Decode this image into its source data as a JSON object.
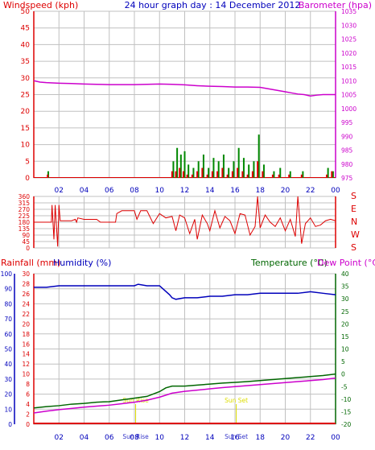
{
  "header": {
    "left": "Windspeed (kph)",
    "center": "24 hour graph day : 14 December 2012",
    "right": "Barometer (hpa)"
  },
  "labels": {
    "rainfall": "Rainfall (mm)",
    "humidity": "Humidity (%)",
    "temperature": "Temperature (°C)",
    "dewpoint": "Dew Point (°C)",
    "sunrise": "Sun Rise",
    "sunset": "Sun Set"
  },
  "colors": {
    "wind": "#dd0000",
    "gust": "#008800",
    "baro": "#cc00cc",
    "dir": "#dd0000",
    "hum": "#0000bb",
    "temp": "#006600",
    "dew": "#cc00cc",
    "rain": "#dd0000",
    "grid": "#c0c0c0",
    "axisRed": "#dd0000",
    "axisMag": "#cc00cc",
    "axisBlue": "#0000bb",
    "axisGreen": "#006600",
    "sun": "#dddd00"
  },
  "chart_data": [
    {
      "type": "line",
      "title": "24 hour graph day : 14 December 2012",
      "x_ticks": [
        "02",
        "04",
        "06",
        "08",
        "10",
        "12",
        "14",
        "16",
        "18",
        "20",
        "22",
        "00"
      ],
      "x_range": [
        0,
        24
      ],
      "left_axis": {
        "label": "Windspeed (kph)",
        "ticks": [
          0,
          5,
          10,
          15,
          20,
          25,
          30,
          35,
          40,
          45,
          50
        ],
        "range": [
          0,
          50
        ]
      },
      "right_axis": {
        "label": "Barometer (hpa)",
        "ticks": [
          975,
          980,
          985,
          990,
          995,
          1000,
          1005,
          1010,
          1015,
          1020,
          1025,
          1030,
          1035
        ],
        "range": [
          975,
          1035
        ]
      },
      "series": [
        {
          "name": "Barometer (hpa)",
          "axis": "right",
          "x": [
            0.0,
            0.5,
            1.0,
            2.0,
            3.0,
            4.0,
            5.0,
            6.0,
            7.0,
            8.0,
            9.0,
            10.0,
            11.0,
            12.0,
            13.0,
            14.0,
            15.0,
            16.0,
            17.0,
            18.0,
            18.5,
            19.0,
            19.5,
            20.0,
            20.5,
            21.0,
            21.5,
            22.0,
            22.5,
            23.0,
            24.0
          ],
          "y": [
            1010.0,
            1009.5,
            1009.3,
            1009.1,
            1009.0,
            1008.8,
            1008.7,
            1008.6,
            1008.6,
            1008.6,
            1008.7,
            1008.8,
            1008.7,
            1008.5,
            1008.2,
            1008.0,
            1007.9,
            1007.7,
            1007.7,
            1007.6,
            1007.2,
            1006.8,
            1006.4,
            1006.0,
            1005.6,
            1005.2,
            1005.0,
            1004.5,
            1004.8,
            1005.0,
            1005.0
          ]
        },
        {
          "name": "Wind speed",
          "axis": "left",
          "kind": "bars",
          "x": [
            1.1,
            11.0,
            11.3,
            11.6,
            11.9,
            12.2,
            12.6,
            13.0,
            13.4,
            13.8,
            14.2,
            14.6,
            15.0,
            15.4,
            15.8,
            16.2,
            16.6,
            17.0,
            17.4,
            17.8,
            18.2,
            19.0,
            19.5,
            20.3,
            21.3,
            23.3,
            23.7
          ],
          "y": [
            1,
            2,
            2,
            3,
            2,
            1,
            1,
            2,
            3,
            1,
            2,
            2,
            3,
            1,
            2,
            3,
            2,
            1,
            2,
            5,
            2,
            1,
            1,
            1,
            1,
            1,
            2
          ]
        },
        {
          "name": "Gust",
          "axis": "left",
          "kind": "bars",
          "x": [
            1.15,
            11.1,
            11.4,
            11.7,
            12.0,
            12.3,
            12.7,
            13.1,
            13.5,
            13.9,
            14.3,
            14.7,
            15.1,
            15.5,
            15.9,
            16.3,
            16.7,
            17.1,
            17.5,
            17.9,
            18.3,
            19.1,
            19.6,
            20.4,
            21.4,
            23.4,
            23.8
          ],
          "y": [
            2,
            5,
            9,
            7,
            8,
            4,
            3,
            5,
            7,
            3,
            6,
            5,
            7,
            3,
            5,
            9,
            6,
            4,
            5,
            13,
            4,
            2,
            3,
            2,
            2,
            3,
            2
          ]
        }
      ]
    },
    {
      "type": "line",
      "title": "",
      "x_range": [
        0,
        24
      ],
      "left_axis": {
        "ticks": [
          0,
          45,
          90,
          135,
          180,
          225,
          270,
          315,
          360
        ],
        "range": [
          0,
          360
        ]
      },
      "right_axis": {
        "ticks": [
          "S",
          "E",
          "N",
          "W",
          "S"
        ]
      },
      "series": [
        {
          "name": "Wind direction",
          "x": [
            0.0,
            1.0,
            1.4,
            1.45,
            1.6,
            1.7,
            1.9,
            2.0,
            2.1,
            2.5,
            3.0,
            3.3,
            3.4,
            3.5,
            4.0,
            5.0,
            5.3,
            6.5,
            6.6,
            7.0,
            8.0,
            8.2,
            8.5,
            9.0,
            9.5,
            10.0,
            10.5,
            11.0,
            11.3,
            11.6,
            12.0,
            12.4,
            12.8,
            13.0,
            13.4,
            13.8,
            14.0,
            14.4,
            14.8,
            15.2,
            15.6,
            16.0,
            16.4,
            16.8,
            17.2,
            17.6,
            17.8,
            18.0,
            18.4,
            18.8,
            19.2,
            19.6,
            20.0,
            20.4,
            20.8,
            21.0,
            21.3,
            21.6,
            22.0,
            22.4,
            22.8,
            23.2,
            23.6,
            24.0
          ],
          "y": [
            180,
            180,
            180,
            300,
            60,
            300,
            10,
            300,
            190,
            190,
            190,
            200,
            180,
            210,
            200,
            200,
            180,
            180,
            240,
            260,
            260,
            200,
            260,
            260,
            170,
            240,
            210,
            220,
            120,
            230,
            210,
            100,
            200,
            60,
            230,
            170,
            120,
            260,
            140,
            220,
            190,
            100,
            240,
            230,
            90,
            150,
            360,
            140,
            230,
            180,
            150,
            210,
            120,
            200,
            80,
            360,
            30,
            170,
            210,
            150,
            160,
            190,
            200,
            190
          ]
        }
      ]
    },
    {
      "type": "line",
      "title": "",
      "x_range": [
        0,
        24
      ],
      "x_ticks": [
        "02",
        "04",
        "06",
        "08",
        "10",
        "12",
        "14",
        "16",
        "18",
        "20",
        "22",
        "00"
      ],
      "axes": {
        "humidity": {
          "label": "Humidity (%)",
          "ticks": [
            0,
            10,
            20,
            30,
            40,
            50,
            60,
            70,
            80,
            90,
            100
          ],
          "range": [
            0,
            100
          ]
        },
        "rainfall": {
          "label": "Rainfall (mm)",
          "ticks": [
            0,
            2,
            4,
            6,
            8,
            10,
            12,
            14,
            16,
            18,
            20,
            22,
            24,
            26,
            28,
            30
          ],
          "range": [
            0,
            30
          ]
        },
        "temperature": {
          "label": "Temperature (°C)",
          "ticks": [
            -20,
            -15,
            -10,
            -5,
            0,
            5,
            10,
            15,
            20,
            25,
            30,
            35,
            40
          ],
          "range": [
            -20,
            40
          ]
        }
      },
      "annotations": [
        {
          "text": "Sun Rise",
          "x": 8.1
        },
        {
          "text": "Sun Set",
          "x": 16.1
        }
      ],
      "series": [
        {
          "name": "Humidity (%)",
          "axis": "humidity",
          "x": [
            0.0,
            1.0,
            2.0,
            3.0,
            4.0,
            5.0,
            6.0,
            7.0,
            8.0,
            8.3,
            9.0,
            10.0,
            10.4,
            10.8,
            11.0,
            11.3,
            12.0,
            13.0,
            14.0,
            15.0,
            16.0,
            17.0,
            18.0,
            19.0,
            20.0,
            21.0,
            22.0,
            23.0,
            24.0
          ],
          "y": [
            91,
            91,
            92,
            92,
            92,
            92,
            92,
            92,
            92,
            93,
            92,
            92,
            89,
            86,
            84,
            83,
            84,
            84,
            85,
            85,
            86,
            86,
            87,
            87,
            87,
            87,
            88,
            87,
            86
          ]
        },
        {
          "name": "Temperature (°C)",
          "axis": "temperature",
          "x": [
            0.0,
            1.0,
            2.0,
            3.0,
            4.0,
            5.0,
            6.0,
            7.0,
            8.0,
            9.0,
            10.0,
            10.5,
            11.0,
            12.0,
            13.0,
            14.0,
            15.0,
            16.0,
            17.0,
            18.0,
            19.0,
            20.0,
            21.0,
            22.0,
            23.0,
            24.0
          ],
          "y": [
            -13.5,
            -13.0,
            -12.6,
            -12.0,
            -11.7,
            -11.2,
            -11.0,
            -10.3,
            -9.6,
            -8.9,
            -7.0,
            -5.5,
            -4.8,
            -4.8,
            -4.4,
            -4.0,
            -3.6,
            -3.3,
            -3.0,
            -2.6,
            -2.2,
            -1.8,
            -1.4,
            -1.0,
            -0.6,
            0.0
          ]
        },
        {
          "name": "Dew Point (°C)",
          "axis": "temperature",
          "x": [
            0.0,
            1.0,
            2.0,
            3.0,
            4.0,
            5.0,
            6.0,
            7.0,
            8.0,
            9.0,
            10.0,
            11.0,
            12.0,
            13.0,
            14.0,
            15.0,
            16.0,
            17.0,
            18.0,
            19.0,
            20.0,
            21.0,
            22.0,
            23.0,
            24.0
          ],
          "y": [
            -15.5,
            -14.8,
            -14.2,
            -13.7,
            -13.2,
            -12.8,
            -12.4,
            -11.8,
            -11.2,
            -10.4,
            -9.2,
            -7.6,
            -6.9,
            -6.4,
            -5.9,
            -5.4,
            -5.0,
            -4.6,
            -4.2,
            -3.8,
            -3.4,
            -3.0,
            -2.6,
            -2.2,
            -1.6
          ]
        },
        {
          "name": "Rainfall (mm)",
          "axis": "rainfall",
          "x": [
            0,
            24
          ],
          "y": [
            0,
            0
          ]
        }
      ]
    }
  ]
}
